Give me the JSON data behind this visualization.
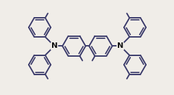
{
  "bg_color": "#f0ede8",
  "bond_color": "#3a3a6a",
  "bond_width": 1.4,
  "text_color": "#111111",
  "N_label": "N",
  "font_size": 8,
  "figsize": [
    2.55,
    1.39
  ],
  "dpi": 100,
  "xlim": [
    -3.0,
    3.0
  ],
  "ylim": [
    -1.6,
    1.6
  ]
}
